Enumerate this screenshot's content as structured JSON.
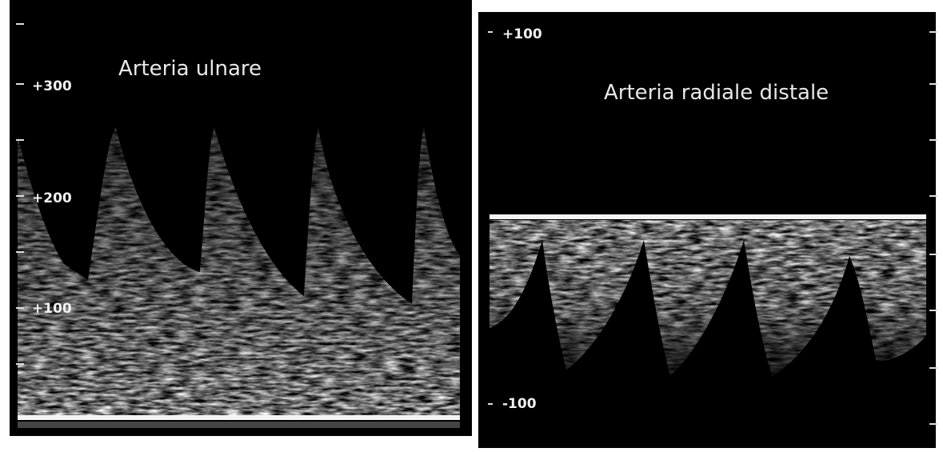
{
  "panels": [
    {
      "title": "Arteria ulnare",
      "scale_labels": [
        "+300",
        "+200",
        "+100"
      ]
    },
    {
      "title": "Arteria radiale distale",
      "scale_labels": [
        "+100",
        "-100"
      ]
    }
  ]
}
